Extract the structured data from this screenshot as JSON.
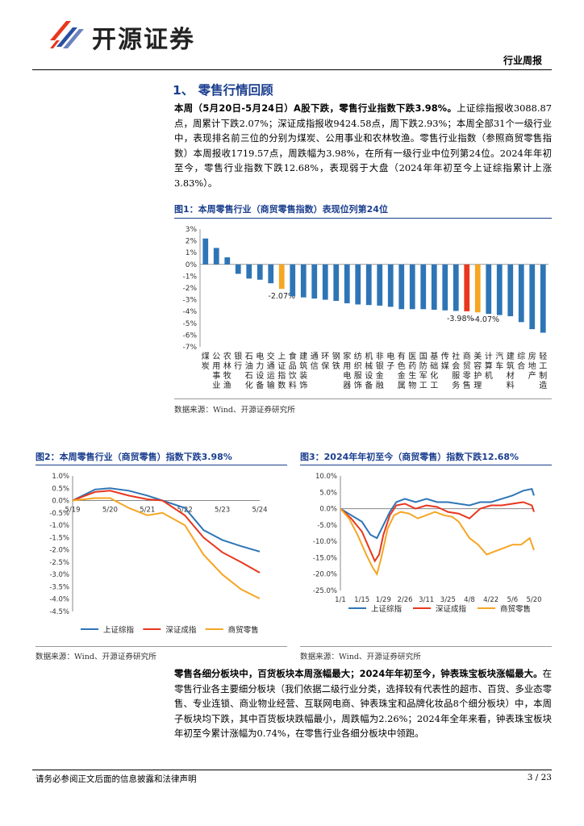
{
  "header": {
    "logo_text": "开源证券",
    "report_type": "行业周报"
  },
  "section": {
    "title": "1、 零售行情回顾"
  },
  "para1": {
    "lead": "本周（5月20日-5月24日）A股下跌，零售行业指数下跌3.98%。",
    "text": "上证综指报收3088.87点，周累计下跌2.07%；深证成指报收9424.58点，周下跌2.93%；本周全部31个一级行业中，表现排名前三位的分别为煤炭、公用事业和农林牧渔。零售行业指数（参照商贸零售指数）本周报收1719.57点，周跌幅为3.98%，在所有一级行业中位列第24位。2024年年初至今，零售行业指数下跌12.68%，表现弱于大盘（2024年年初至今上证综指累计上涨3.83%）。"
  },
  "fig1": {
    "title": "图1：本周零售行业（商贸零售指数）表现位列第24位",
    "source": "数据来源：Wind、开源证券研究所"
  },
  "fig2": {
    "title": "图2：本周零售行业（商贸零售）指数下跌3.98%",
    "source": "数据来源：Wind、开源证券研究所"
  },
  "fig3": {
    "title": "图3：2024年年初至今（商贸零售）指数下跌12.68%",
    "source": "数据来源：Wind、开源证券研究所"
  },
  "para2": {
    "lead": "零售各细分板块中，百货板块本周涨幅最大；2024年年初至今，钟表珠宝板块涨幅最大。",
    "text": "在零售行业各主要细分板块（我们依据二级行业分类，选择较有代表性的超市、百货、多业态零售、专业连锁、商业物业经营、互联网电商、钟表珠宝和品牌化妆品8个细分板块）中，本周子板块均下跌，其中百货板块跌幅最小，周跌幅为2.26%；2024年全年来看，钟表珠宝板块年初至今累计涨幅为0.74%，在零售行业各细分板块中领跑。"
  },
  "footer": {
    "disclaimer": "请务必参阅正文后面的信息披露和法律声明",
    "page": "3 / 23"
  },
  "colors": {
    "blue": "#2e75b6",
    "orange": "#f5a623",
    "red": "#e8371e",
    "brand": "#1a3e8e"
  },
  "chart_data": [
    {
      "type": "bar",
      "title": "本周零售行业（商贸零售指数）表现位列第24位",
      "categories": [
        "煤炭",
        "公用事业",
        "农林牧渔",
        "银行",
        "石油石化",
        "电力设备",
        "交通运输",
        "上证指数",
        "食品饮料",
        "建筑装饰",
        "通信",
        "环保",
        "钢铁",
        "家用电器",
        "纺织服饰",
        "机械设备",
        "非银金融",
        "电子",
        "有色金属",
        "医药生物",
        "国防军工",
        "基础化工",
        "传媒",
        "社会服务",
        "商贸零售",
        "美容护理",
        "计算机",
        "汽车",
        "建筑材料",
        "综合",
        "房地产",
        "轻工制造"
      ],
      "labels": [
        "煤\n炭",
        "公\n用\n事\n业",
        "农\n林\n牧\n渔",
        "银\n行",
        "石\n油\n石\n化",
        "电\n力\n设\n备",
        "交\n通\n运\n输",
        "上\n证\n指\n数",
        "食\n品\n饮\n料",
        "建\n筑\n装\n饰",
        "通\n信",
        "环\n保",
        "钢\n铁",
        "家\n用\n电\n器",
        "纺\n织\n服\n饰",
        "机\n械\n设\n备",
        "非\n银\n金\n融",
        "电\n子",
        "有\n色\n金\n属",
        "医\n药\n生\n物",
        "国\n防\n军\n工",
        "基\n础\n化\n工",
        "传\n媒",
        "社\n会\n服\n务",
        "商\n贸\n零\n售",
        "美\n容\n护\n理",
        "计\n算\n机",
        "汽\n车",
        "建\n筑\n材\n料",
        "综\n合",
        "房\n地\n产",
        "轻\n工\n制\n造"
      ],
      "values": [
        2.2,
        1.4,
        0.6,
        -0.8,
        -1.2,
        -1.3,
        -1.6,
        -2.07,
        -2.7,
        -2.8,
        -2.9,
        -3.0,
        -3.1,
        -3.3,
        -3.4,
        -3.45,
        -3.5,
        -3.6,
        -3.8,
        -3.8,
        -3.8,
        -3.85,
        -3.9,
        -3.95,
        -3.98,
        -4.07,
        -4.2,
        -4.3,
        -4.4,
        -4.9,
        -5.5,
        -5.8
      ],
      "highlight": {
        "上证指数": "orange",
        "商贸零售": "red",
        "美容护理": "orange"
      },
      "data_labels": {
        "上证指数": "-2.07%",
        "商贸零售": "-3.98%",
        "美容护理": "-4.07%"
      },
      "ylim": [
        -7,
        3
      ],
      "yticks": [
        "3%",
        "2%",
        "1%",
        "0%",
        "-1%",
        "-2%",
        "-3%",
        "-4%",
        "-5%",
        "-6%",
        "-7%"
      ]
    },
    {
      "type": "line",
      "title": "本周零售行业（商贸零售）指数下跌3.98%",
      "x": [
        "5/19",
        "5/20",
        "5/21",
        "5/22",
        "5/23",
        "5/24"
      ],
      "ylim": [
        -4.5,
        1.0
      ],
      "yticks": [
        "1.0%",
        "0.5%",
        "0.0%",
        "-0.5%",
        "-1.0%",
        "-1.5%",
        "-2.0%",
        "-2.5%",
        "-3.0%",
        "-3.5%",
        "-4.0%",
        "-4.5%"
      ],
      "series": [
        {
          "name": "上证综指",
          "color": "blue",
          "points": [
            [
              0,
              0
            ],
            [
              0.6,
              0.45
            ],
            [
              1,
              0.5
            ],
            [
              1.5,
              0.4
            ],
            [
              2,
              0.2
            ],
            [
              2.4,
              0
            ],
            [
              3,
              -0.3
            ],
            [
              3.5,
              -1.2
            ],
            [
              4,
              -1.6
            ],
            [
              4.5,
              -1.85
            ],
            [
              5,
              -2.07
            ]
          ]
        },
        {
          "name": "深证成指",
          "color": "red",
          "points": [
            [
              0,
              0
            ],
            [
              0.6,
              0.35
            ],
            [
              1,
              0.4
            ],
            [
              1.5,
              0.2
            ],
            [
              2,
              0.05
            ],
            [
              2.4,
              0
            ],
            [
              3,
              -0.6
            ],
            [
              3.5,
              -1.5
            ],
            [
              4,
              -2.1
            ],
            [
              4.5,
              -2.5
            ],
            [
              5,
              -2.93
            ]
          ]
        },
        {
          "name": "商贸零售",
          "color": "orange",
          "points": [
            [
              0,
              0
            ],
            [
              0.6,
              0.1
            ],
            [
              1,
              0.1
            ],
            [
              1.5,
              -0.3
            ],
            [
              2,
              -0.6
            ],
            [
              2.4,
              -0.5
            ],
            [
              3,
              -1.0
            ],
            [
              3.5,
              -2.2
            ],
            [
              4,
              -3.0
            ],
            [
              4.5,
              -3.6
            ],
            [
              5,
              -3.98
            ]
          ]
        }
      ]
    },
    {
      "type": "line",
      "title": "2024年年初至今（商贸零售）指数下跌12.68%",
      "x": [
        "1/1",
        "1/15",
        "1/29",
        "2/26",
        "3/11",
        "3/25",
        "4/8",
        "4/22",
        "5/6",
        "5/20"
      ],
      "ylim": [
        -25,
        10
      ],
      "yticks": [
        "10.0%",
        "5.0%",
        "0.0%",
        "-5.0%",
        "-10.0%",
        "-15.0%",
        "-20.0%",
        "-25.0%"
      ],
      "series": [
        {
          "name": "上证综指",
          "color": "blue",
          "points": [
            [
              0,
              0
            ],
            [
              0.5,
              -2
            ],
            [
              1,
              -4
            ],
            [
              1.4,
              -8
            ],
            [
              1.7,
              -9
            ],
            [
              2,
              -5
            ],
            [
              2.3,
              -1
            ],
            [
              2.6,
              2
            ],
            [
              3,
              3
            ],
            [
              3.5,
              2
            ],
            [
              4,
              3
            ],
            [
              4.5,
              2
            ],
            [
              5,
              2
            ],
            [
              5.5,
              1.5
            ],
            [
              6,
              1
            ],
            [
              6.5,
              2
            ],
            [
              7,
              2
            ],
            [
              7.5,
              3
            ],
            [
              8,
              4
            ],
            [
              8.5,
              5.5
            ],
            [
              8.9,
              6
            ],
            [
              9,
              4
            ]
          ]
        },
        {
          "name": "深证成指",
          "color": "red",
          "points": [
            [
              0,
              0
            ],
            [
              0.5,
              -3
            ],
            [
              1,
              -7
            ],
            [
              1.4,
              -13
            ],
            [
              1.6,
              -16
            ],
            [
              1.8,
              -14
            ],
            [
              2,
              -8
            ],
            [
              2.3,
              -2
            ],
            [
              2.6,
              1
            ],
            [
              3,
              1.5
            ],
            [
              3.5,
              0
            ],
            [
              4,
              1
            ],
            [
              4.5,
              0.5
            ],
            [
              5,
              -1
            ],
            [
              5.5,
              -1.5
            ],
            [
              6,
              -3
            ],
            [
              6.5,
              0
            ],
            [
              7,
              1
            ],
            [
              7.5,
              1
            ],
            [
              8,
              1.5
            ],
            [
              8.5,
              2
            ],
            [
              8.9,
              1
            ],
            [
              9,
              -1
            ]
          ]
        },
        {
          "name": "商贸零售",
          "color": "orange",
          "points": [
            [
              0,
              0
            ],
            [
              0.4,
              -3
            ],
            [
              0.8,
              -8
            ],
            [
              1.2,
              -14
            ],
            [
              1.5,
              -18
            ],
            [
              1.7,
              -20
            ],
            [
              1.9,
              -15
            ],
            [
              2.2,
              -6
            ],
            [
              2.5,
              -2
            ],
            [
              2.8,
              -1
            ],
            [
              3.2,
              -1.5
            ],
            [
              3.6,
              -3
            ],
            [
              4,
              -2
            ],
            [
              4.4,
              -1
            ],
            [
              4.8,
              -2
            ],
            [
              5.2,
              -2.5
            ],
            [
              5.5,
              -4
            ],
            [
              6,
              -9
            ],
            [
              6.4,
              -11
            ],
            [
              6.8,
              -14
            ],
            [
              7.2,
              -13
            ],
            [
              7.6,
              -12
            ],
            [
              8,
              -11
            ],
            [
              8.4,
              -11
            ],
            [
              8.8,
              -9
            ],
            [
              9,
              -12.68
            ]
          ]
        }
      ]
    }
  ]
}
